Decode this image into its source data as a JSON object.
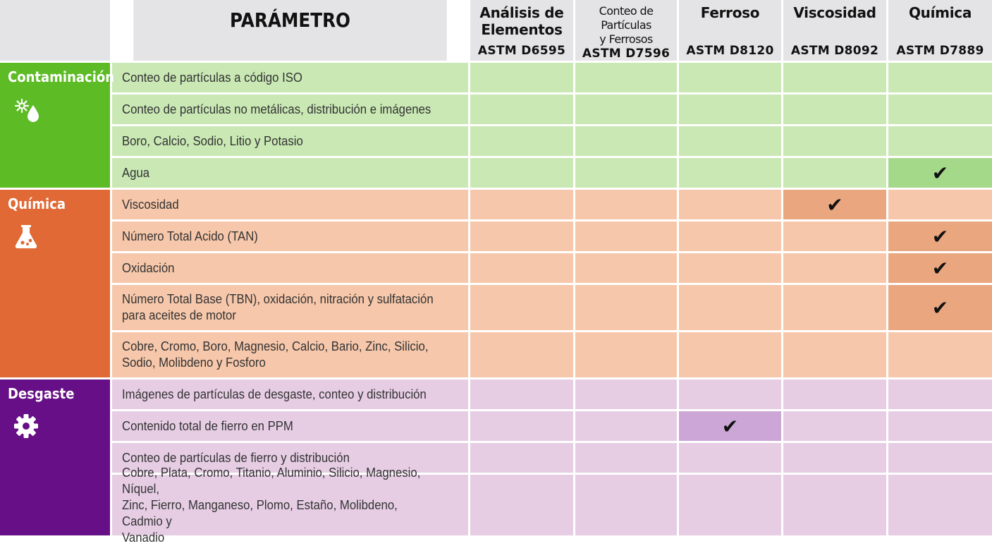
{
  "header": {
    "parameter": "PARÁMETRO",
    "columns": [
      {
        "title_line1": "Análisis de",
        "title_line2": "Elementos",
        "code": "ASTM D6595"
      },
      {
        "title_line1": "Conteo de Partículas",
        "title_line2": "y Ferrosos",
        "code": "ASTM D7596"
      },
      {
        "title_line1": "Ferroso",
        "title_line2": "",
        "code": "ASTM D8120"
      },
      {
        "title_line1": "Viscosidad",
        "title_line2": "",
        "code": "ASTM D8092"
      },
      {
        "title_line1": "Química",
        "title_line2": "",
        "code": "ASTM D7889"
      }
    ]
  },
  "categories": [
    {
      "label": "Contaminación",
      "icon": "contamination-drop-icon",
      "color": "#5dbb26"
    },
    {
      "label": "Química",
      "icon": "flask-icon",
      "color": "#e06936"
    },
    {
      "label": "Desgaste",
      "icon": "gear-icon",
      "color": "#660f86"
    }
  ],
  "check_symbol": "✔",
  "rows": [
    {
      "cat": 0,
      "line1": "Conteo de partículas a código ISO",
      "line2": "",
      "line3": ""
    },
    {
      "cat": 0,
      "line1": "Conteo de partículas no metálicas, distribución e imágenes",
      "line2": "",
      "line3": ""
    },
    {
      "cat": 0,
      "line1": "Boro, Calcio, Sodio, Litio y Potasio",
      "line2": "",
      "line3": ""
    },
    {
      "cat": 0,
      "line1": "Agua",
      "line2": "",
      "line3": ""
    },
    {
      "cat": 1,
      "line1": "Viscosidad",
      "line2": "",
      "line3": ""
    },
    {
      "cat": 1,
      "line1": "Número Total Acido (TAN)",
      "line2": "",
      "line3": ""
    },
    {
      "cat": 1,
      "line1": "Oxidación",
      "line2": "",
      "line3": ""
    },
    {
      "cat": 1,
      "line1": "Número Total Base (TBN), oxidación, nitración y sulfatación",
      "line2": "para aceites de motor",
      "line3": ""
    },
    {
      "cat": 1,
      "line1": "Cobre, Cromo, Boro, Magnesio, Calcio, Bario, Zinc, Silicio,",
      "line2": "Sodio, Molibdeno y Fosforo",
      "line3": ""
    },
    {
      "cat": 2,
      "line1": "Imágenes de partículas de desgaste, conteo y distribución",
      "line2": "",
      "line3": ""
    },
    {
      "cat": 2,
      "line1": "Contenido total de fierro en PPM",
      "line2": "",
      "line3": ""
    },
    {
      "cat": 2,
      "line1": "Conteo de partículas de fierro y distribución",
      "line2": "",
      "line3": ""
    },
    {
      "cat": 2,
      "line1": "Cobre, Plata, Cromo, Titanio, Aluminio, Silicio, Magnesio, Níquel,",
      "line2": "Zinc, Fierro, Manganeso, Plomo, Estaño, Molibdeno, Cadmio y",
      "line3": "Vanadio"
    }
  ],
  "checks": [
    [
      false,
      false,
      false,
      false,
      false
    ],
    [
      false,
      false,
      false,
      false,
      false
    ],
    [
      false,
      false,
      false,
      false,
      false
    ],
    [
      false,
      false,
      false,
      false,
      true
    ],
    [
      false,
      false,
      false,
      true,
      false
    ],
    [
      false,
      false,
      false,
      false,
      true
    ],
    [
      false,
      false,
      false,
      false,
      true
    ],
    [
      false,
      false,
      false,
      false,
      true
    ],
    [
      false,
      false,
      false,
      false,
      false
    ],
    [
      false,
      false,
      false,
      false,
      false
    ],
    [
      false,
      false,
      true,
      false,
      false
    ],
    [
      false,
      false,
      false,
      false,
      false
    ],
    [
      false,
      false,
      false,
      false,
      false
    ]
  ]
}
